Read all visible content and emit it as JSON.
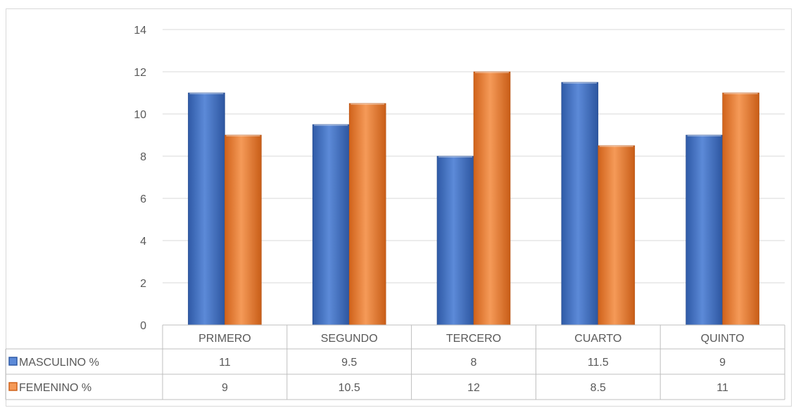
{
  "chart_data": {
    "type": "bar",
    "categories": [
      "PRIMERO",
      "SEGUNDO",
      "TERCERO",
      "CUARTO",
      "QUINTO"
    ],
    "series": [
      {
        "name": "MASCULINO %",
        "values": [
          11,
          9.5,
          8,
          11.5,
          9
        ],
        "color": "#4472c4"
      },
      {
        "name": "FEMENINO %",
        "values": [
          9,
          10.5,
          12,
          8.5,
          11
        ],
        "color": "#ed7d31"
      }
    ],
    "yticks": [
      "0",
      "2",
      "4",
      "6",
      "8",
      "10",
      "12",
      "14"
    ],
    "ylim": [
      0,
      14
    ],
    "grid": true,
    "legend": "data-table-left",
    "data_table": {
      "rows": [
        {
          "label": "MASCULINO %",
          "cells": [
            "11",
            "9.5",
            "8",
            "11.5",
            "9"
          ]
        },
        {
          "label": "FEMENINO %",
          "cells": [
            "9",
            "10.5",
            "12",
            "8.5",
            "11"
          ]
        }
      ]
    }
  }
}
